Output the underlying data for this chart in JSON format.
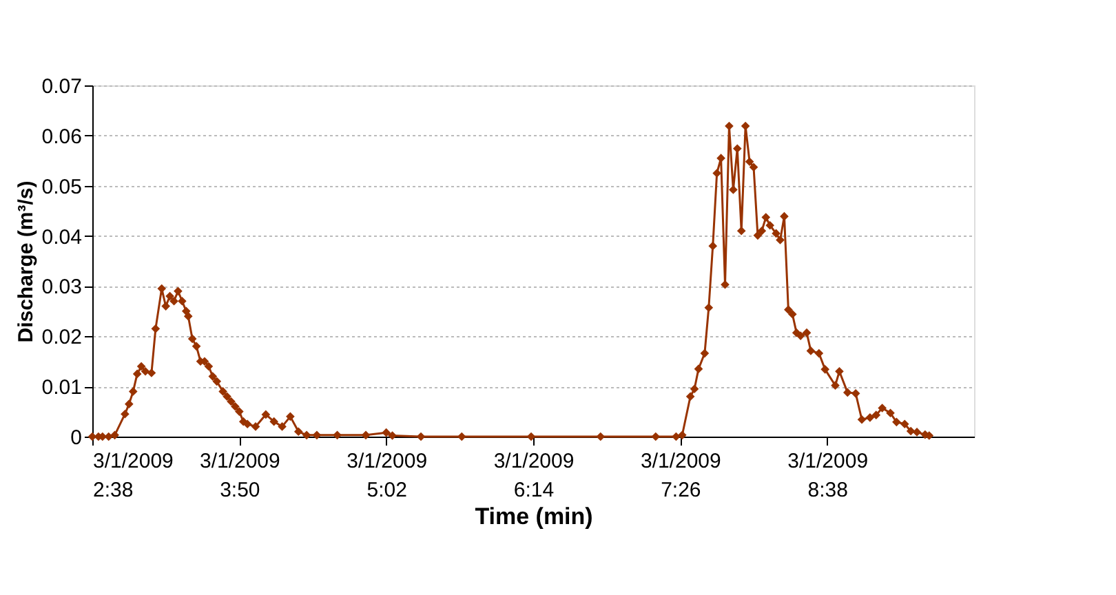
{
  "chart_data": {
    "type": "line",
    "xlabel": "Time (min)",
    "ylabel": "Discharge (m³/s)",
    "x": [
      "2009-03-01T02:38",
      "2009-03-01T02:41",
      "2009-03-01T02:43",
      "2009-03-01T02:46",
      "2009-03-01T02:49",
      "2009-03-01T02:54",
      "2009-03-01T02:56",
      "2009-03-01T02:58",
      "2009-03-01T03:00",
      "2009-03-01T03:02",
      "2009-03-01T03:04",
      "2009-03-01T03:07",
      "2009-03-01T03:09",
      "2009-03-01T03:12",
      "2009-03-01T03:14",
      "2009-03-01T03:16",
      "2009-03-01T03:18",
      "2009-03-01T03:20",
      "2009-03-01T03:22",
      "2009-03-01T03:24",
      "2009-03-01T03:25",
      "2009-03-01T03:27",
      "2009-03-01T03:29",
      "2009-03-01T03:31",
      "2009-03-01T03:33",
      "2009-03-01T03:35",
      "2009-03-01T03:37",
      "2009-03-01T03:39",
      "2009-03-01T03:42",
      "2009-03-01T03:44",
      "2009-03-01T03:46",
      "2009-03-01T03:48",
      "2009-03-01T03:50",
      "2009-03-01T03:52",
      "2009-03-01T03:54",
      "2009-03-01T03:58",
      "2009-03-01T04:03",
      "2009-03-01T04:07",
      "2009-03-01T04:11",
      "2009-03-01T04:15",
      "2009-03-01T04:19",
      "2009-03-01T04:23",
      "2009-03-01T04:28",
      "2009-03-01T04:38",
      "2009-03-01T04:52",
      "2009-03-01T05:02",
      "2009-03-01T05:05",
      "2009-03-01T05:19",
      "2009-03-01T05:39",
      "2009-03-01T06:13",
      "2009-03-01T06:47",
      "2009-03-01T07:14",
      "2009-03-01T07:24",
      "2009-03-01T07:27",
      "2009-03-01T07:31",
      "2009-03-01T07:33",
      "2009-03-01T07:35",
      "2009-03-01T07:38",
      "2009-03-01T07:40",
      "2009-03-01T07:42",
      "2009-03-01T07:44",
      "2009-03-01T07:46",
      "2009-03-01T07:48",
      "2009-03-01T07:50",
      "2009-03-01T07:52",
      "2009-03-01T07:54",
      "2009-03-01T07:56",
      "2009-03-01T07:58",
      "2009-03-01T08:00",
      "2009-03-01T08:02",
      "2009-03-01T08:04",
      "2009-03-01T08:06",
      "2009-03-01T08:08",
      "2009-03-01T08:10",
      "2009-03-01T08:13",
      "2009-03-01T08:15",
      "2009-03-01T08:17",
      "2009-03-01T08:19",
      "2009-03-01T08:21",
      "2009-03-01T08:23",
      "2009-03-01T08:25",
      "2009-03-01T08:28",
      "2009-03-01T08:30",
      "2009-03-01T08:34",
      "2009-03-01T08:37",
      "2009-03-01T08:42",
      "2009-03-01T08:44",
      "2009-03-01T08:48",
      "2009-03-01T08:52",
      "2009-03-01T08:55",
      "2009-03-01T08:59",
      "2009-03-01T09:02",
      "2009-03-01T09:05",
      "2009-03-01T09:09",
      "2009-03-01T09:12",
      "2009-03-01T09:16",
      "2009-03-01T09:19",
      "2009-03-01T09:22",
      "2009-03-01T09:26",
      "2009-03-01T09:28"
    ],
    "series": [
      {
        "color": "#993300",
        "values": [
          0,
          0,
          0,
          0,
          0.0003,
          0.0045,
          0.0065,
          0.009,
          0.0125,
          0.014,
          0.013,
          0.0127,
          0.0215,
          0.0295,
          0.026,
          0.028,
          0.027,
          0.029,
          0.027,
          0.025,
          0.024,
          0.0195,
          0.018,
          0.015,
          0.015,
          0.014,
          0.012,
          0.011,
          0.009,
          0.008,
          0.007,
          0.006,
          0.005,
          0.003,
          0.0025,
          0.002,
          0.0044,
          0.003,
          0.002,
          0.004,
          0.001,
          0.0003,
          0.0003,
          0.0003,
          0.0003,
          0.0008,
          0.0002,
          0,
          0,
          0,
          0,
          0,
          0,
          0.0003,
          0.008,
          0.0095,
          0.0135,
          0.0166,
          0.0257,
          0.038,
          0.0525,
          0.0555,
          0.0303,
          0.0619,
          0.0492,
          0.0574,
          0.041,
          0.0619,
          0.0548,
          0.0537,
          0.0401,
          0.041,
          0.0437,
          0.0421,
          0.0405,
          0.0392,
          0.0439,
          0.0253,
          0.0244,
          0.0207,
          0.0201,
          0.0207,
          0.0171,
          0.0166,
          0.0134,
          0.0102,
          0.013,
          0.0088,
          0.0086,
          0.0034,
          0.0038,
          0.0043,
          0.0057,
          0.0047,
          0.0029,
          0.0025,
          0.0011,
          0.0009,
          0.0004,
          0.0002
        ]
      }
    ],
    "xlim": [
      "2009-03-01T02:38",
      "2009-03-01T09:50"
    ],
    "xticks": [
      {
        "value": "2009-03-01T02:38",
        "label": "3/1/2009\n2:38"
      },
      {
        "value": "2009-03-01T03:50",
        "label": "3/1/2009\n3:50"
      },
      {
        "value": "2009-03-01T05:02",
        "label": "3/1/2009\n5:02"
      },
      {
        "value": "2009-03-01T06:14",
        "label": "3/1/2009\n6:14"
      },
      {
        "value": "2009-03-01T07:26",
        "label": "3/1/2009\n7:26"
      },
      {
        "value": "2009-03-01T08:38",
        "label": "3/1/2009\n8:38"
      }
    ],
    "ylim": [
      0,
      0.07
    ],
    "yticks": [
      0,
      0.01,
      0.02,
      0.03,
      0.04,
      0.05,
      0.06,
      0.07
    ],
    "grid": "y",
    "marker": "diamond",
    "line_style": "solid"
  }
}
